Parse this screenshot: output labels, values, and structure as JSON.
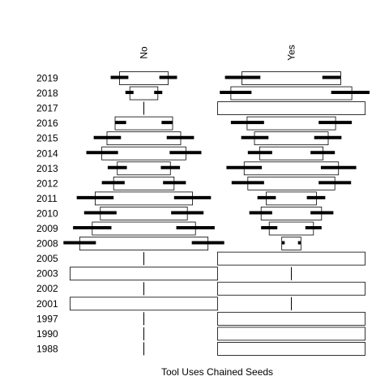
{
  "chart_data": {
    "type": "mosaic-spine",
    "title": "",
    "xlabel": "Tool Uses Chained Seeds",
    "ylabel": "",
    "groups": [
      "No",
      "Yes"
    ],
    "years": [
      "2019",
      "2018",
      "2017",
      "2016",
      "2015",
      "2014",
      "2013",
      "2012",
      "2011",
      "2010",
      "2009",
      "2008",
      "2005",
      "2003",
      "2002",
      "2001",
      "1997",
      "1990",
      "1988"
    ],
    "bars": {
      "No": [
        {
          "year": "2019",
          "lo": -0.33,
          "hi": 0.33,
          "ci_lo": [
            -0.45,
            -0.21
          ],
          "ci_hi": [
            0.21,
            0.45
          ]
        },
        {
          "year": "2018",
          "lo": -0.19,
          "hi": 0.19,
          "ci_lo": [
            -0.25,
            -0.14
          ],
          "ci_hi": [
            0.14,
            0.25
          ]
        },
        {
          "year": "2017",
          "lo": 0,
          "hi": 0,
          "ci_lo": null,
          "ci_hi": null
        },
        {
          "year": "2016",
          "lo": -0.39,
          "hi": 0.39,
          "ci_lo": [
            -0.39,
            -0.24
          ],
          "ci_hi": [
            0.24,
            0.39
          ]
        },
        {
          "year": "2015",
          "lo": -0.5,
          "hi": 0.5,
          "ci_lo": [
            -0.68,
            -0.31
          ],
          "ci_hi": [
            0.31,
            0.68
          ]
        },
        {
          "year": "2014",
          "lo": -0.57,
          "hi": 0.57,
          "ci_lo": [
            -0.78,
            -0.35
          ],
          "ci_hi": [
            0.35,
            0.78
          ]
        },
        {
          "year": "2013",
          "lo": -0.36,
          "hi": 0.36,
          "ci_lo": [
            -0.49,
            -0.23
          ],
          "ci_hi": [
            0.23,
            0.49
          ]
        },
        {
          "year": "2012",
          "lo": -0.41,
          "hi": 0.41,
          "ci_lo": [
            -0.57,
            -0.26
          ],
          "ci_hi": [
            0.26,
            0.57
          ]
        },
        {
          "year": "2011",
          "lo": -0.66,
          "hi": 0.66,
          "ci_lo": [
            -0.91,
            -0.41
          ],
          "ci_hi": [
            0.41,
            0.91
          ]
        },
        {
          "year": "2010",
          "lo": -0.59,
          "hi": 0.59,
          "ci_lo": [
            -0.81,
            -0.37
          ],
          "ci_hi": [
            0.37,
            0.81
          ]
        },
        {
          "year": "2009",
          "lo": -0.7,
          "hi": 0.7,
          "ci_lo": [
            -0.96,
            -0.44
          ],
          "ci_hi": [
            0.44,
            0.96
          ]
        },
        {
          "year": "2008",
          "lo": -0.87,
          "hi": 0.87,
          "ci_lo": [
            -1.09,
            -0.65
          ],
          "ci_hi": [
            0.65,
            1.09
          ]
        },
        {
          "year": "2005",
          "lo": 0,
          "hi": 0,
          "ci_lo": null,
          "ci_hi": null
        },
        {
          "year": "2003",
          "lo": -1.0,
          "hi": 1.0,
          "ci_lo": null,
          "ci_hi": null
        },
        {
          "year": "2002",
          "lo": 0,
          "hi": 0,
          "ci_lo": null,
          "ci_hi": null
        },
        {
          "year": "2001",
          "lo": -1.0,
          "hi": 1.0,
          "ci_lo": null,
          "ci_hi": null
        },
        {
          "year": "1997",
          "lo": 0,
          "hi": 0,
          "ci_lo": null,
          "ci_hi": null
        },
        {
          "year": "1990",
          "lo": 0,
          "hi": 0,
          "ci_lo": null,
          "ci_hi": null
        },
        {
          "year": "1988",
          "lo": 0,
          "hi": 0,
          "ci_lo": null,
          "ci_hi": null
        }
      ],
      "Yes": [
        {
          "year": "2019",
          "lo": -0.67,
          "hi": 0.67,
          "ci_lo": [
            -0.9,
            -0.42
          ],
          "ci_hi": [
            0.42,
            0.67
          ]
        },
        {
          "year": "2018",
          "lo": -0.82,
          "hi": 0.82,
          "ci_lo": [
            -0.97,
            -0.54
          ],
          "ci_hi": [
            0.54,
            1.06
          ]
        },
        {
          "year": "2017",
          "lo": -1.0,
          "hi": 1.0,
          "ci_lo": null,
          "ci_hi": null
        },
        {
          "year": "2016",
          "lo": -0.6,
          "hi": 0.6,
          "ci_lo": [
            -0.82,
            -0.37
          ],
          "ci_hi": [
            0.37,
            0.82
          ]
        },
        {
          "year": "2015",
          "lo": -0.5,
          "hi": 0.5,
          "ci_lo": [
            -0.68,
            -0.31
          ],
          "ci_hi": [
            0.31,
            0.68
          ]
        },
        {
          "year": "2014",
          "lo": -0.43,
          "hi": 0.43,
          "ci_lo": [
            -0.59,
            -0.26
          ],
          "ci_hi": [
            0.26,
            0.59
          ]
        },
        {
          "year": "2013",
          "lo": -0.64,
          "hi": 0.64,
          "ci_lo": [
            -0.88,
            -0.4
          ],
          "ci_hi": [
            0.4,
            0.88
          ]
        },
        {
          "year": "2012",
          "lo": -0.59,
          "hi": 0.59,
          "ci_lo": [
            -0.81,
            -0.37
          ],
          "ci_hi": [
            0.37,
            0.81
          ]
        },
        {
          "year": "2011",
          "lo": -0.34,
          "hi": 0.34,
          "ci_lo": [
            -0.46,
            -0.21
          ],
          "ci_hi": [
            0.21,
            0.46
          ]
        },
        {
          "year": "2010",
          "lo": -0.41,
          "hi": 0.41,
          "ci_lo": [
            -0.57,
            -0.26
          ],
          "ci_hi": [
            0.26,
            0.57
          ]
        },
        {
          "year": "2009",
          "lo": -0.3,
          "hi": 0.3,
          "ci_lo": [
            -0.41,
            -0.19
          ],
          "ci_hi": [
            0.19,
            0.41
          ]
        },
        {
          "year": "2008",
          "lo": -0.13,
          "hi": 0.13,
          "ci_lo": [
            -0.13,
            -0.09
          ],
          "ci_hi": [
            0.09,
            0.13
          ]
        },
        {
          "year": "2005",
          "lo": -1.0,
          "hi": 1.0,
          "ci_lo": null,
          "ci_hi": null
        },
        {
          "year": "2003",
          "lo": 0,
          "hi": 0,
          "ci_lo": null,
          "ci_hi": null
        },
        {
          "year": "2002",
          "lo": -1.0,
          "hi": 1.0,
          "ci_lo": null,
          "ci_hi": null
        },
        {
          "year": "2001",
          "lo": 0,
          "hi": 0,
          "ci_lo": null,
          "ci_hi": null
        },
        {
          "year": "1997",
          "lo": -1.0,
          "hi": 1.0,
          "ci_lo": null,
          "ci_hi": null
        },
        {
          "year": "1990",
          "lo": -1.0,
          "hi": 1.0,
          "ci_lo": null,
          "ci_hi": null
        },
        {
          "year": "1988",
          "lo": -1.0,
          "hi": 1.0,
          "ci_lo": null,
          "ci_hi": null
        }
      ]
    },
    "grid": false,
    "legend": "none"
  }
}
